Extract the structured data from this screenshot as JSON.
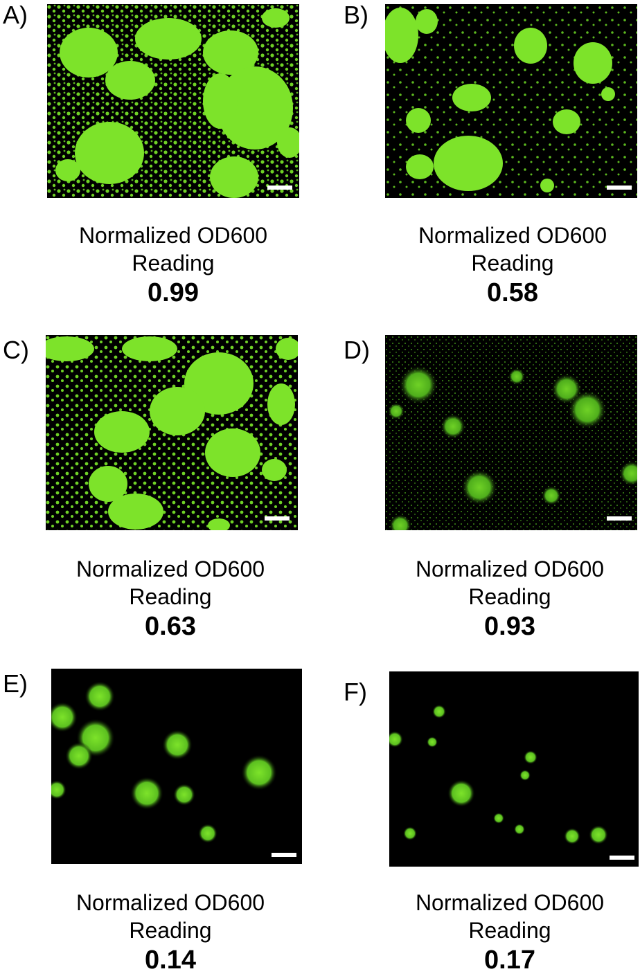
{
  "panels": [
    {
      "label": "A)",
      "caption_line1": "Normalized OD600",
      "caption_line2": "Reading",
      "value": "0.99"
    },
    {
      "label": "B)",
      "caption_line1": "Normalized OD600",
      "caption_line2": "Reading",
      "value": "0.58"
    },
    {
      "label": "C)",
      "caption_line1": "Normalized OD600",
      "caption_line2": "Reading",
      "value": "0.63"
    },
    {
      "label": "D)",
      "caption_line1": "Normalized OD600",
      "caption_line2": "Reading",
      "value": "0.93"
    },
    {
      "label": "E)",
      "caption_line1": "Normalized OD600",
      "caption_line2": "Reading",
      "value": "0.14"
    },
    {
      "label": "F)",
      "caption_line1": "Normalized OD600",
      "caption_line2": "Reading",
      "value": "0.17"
    }
  ],
  "colors": {
    "fluorescence": "#7de32a",
    "background": "#000000",
    "scale_bar": "#ffffff"
  }
}
